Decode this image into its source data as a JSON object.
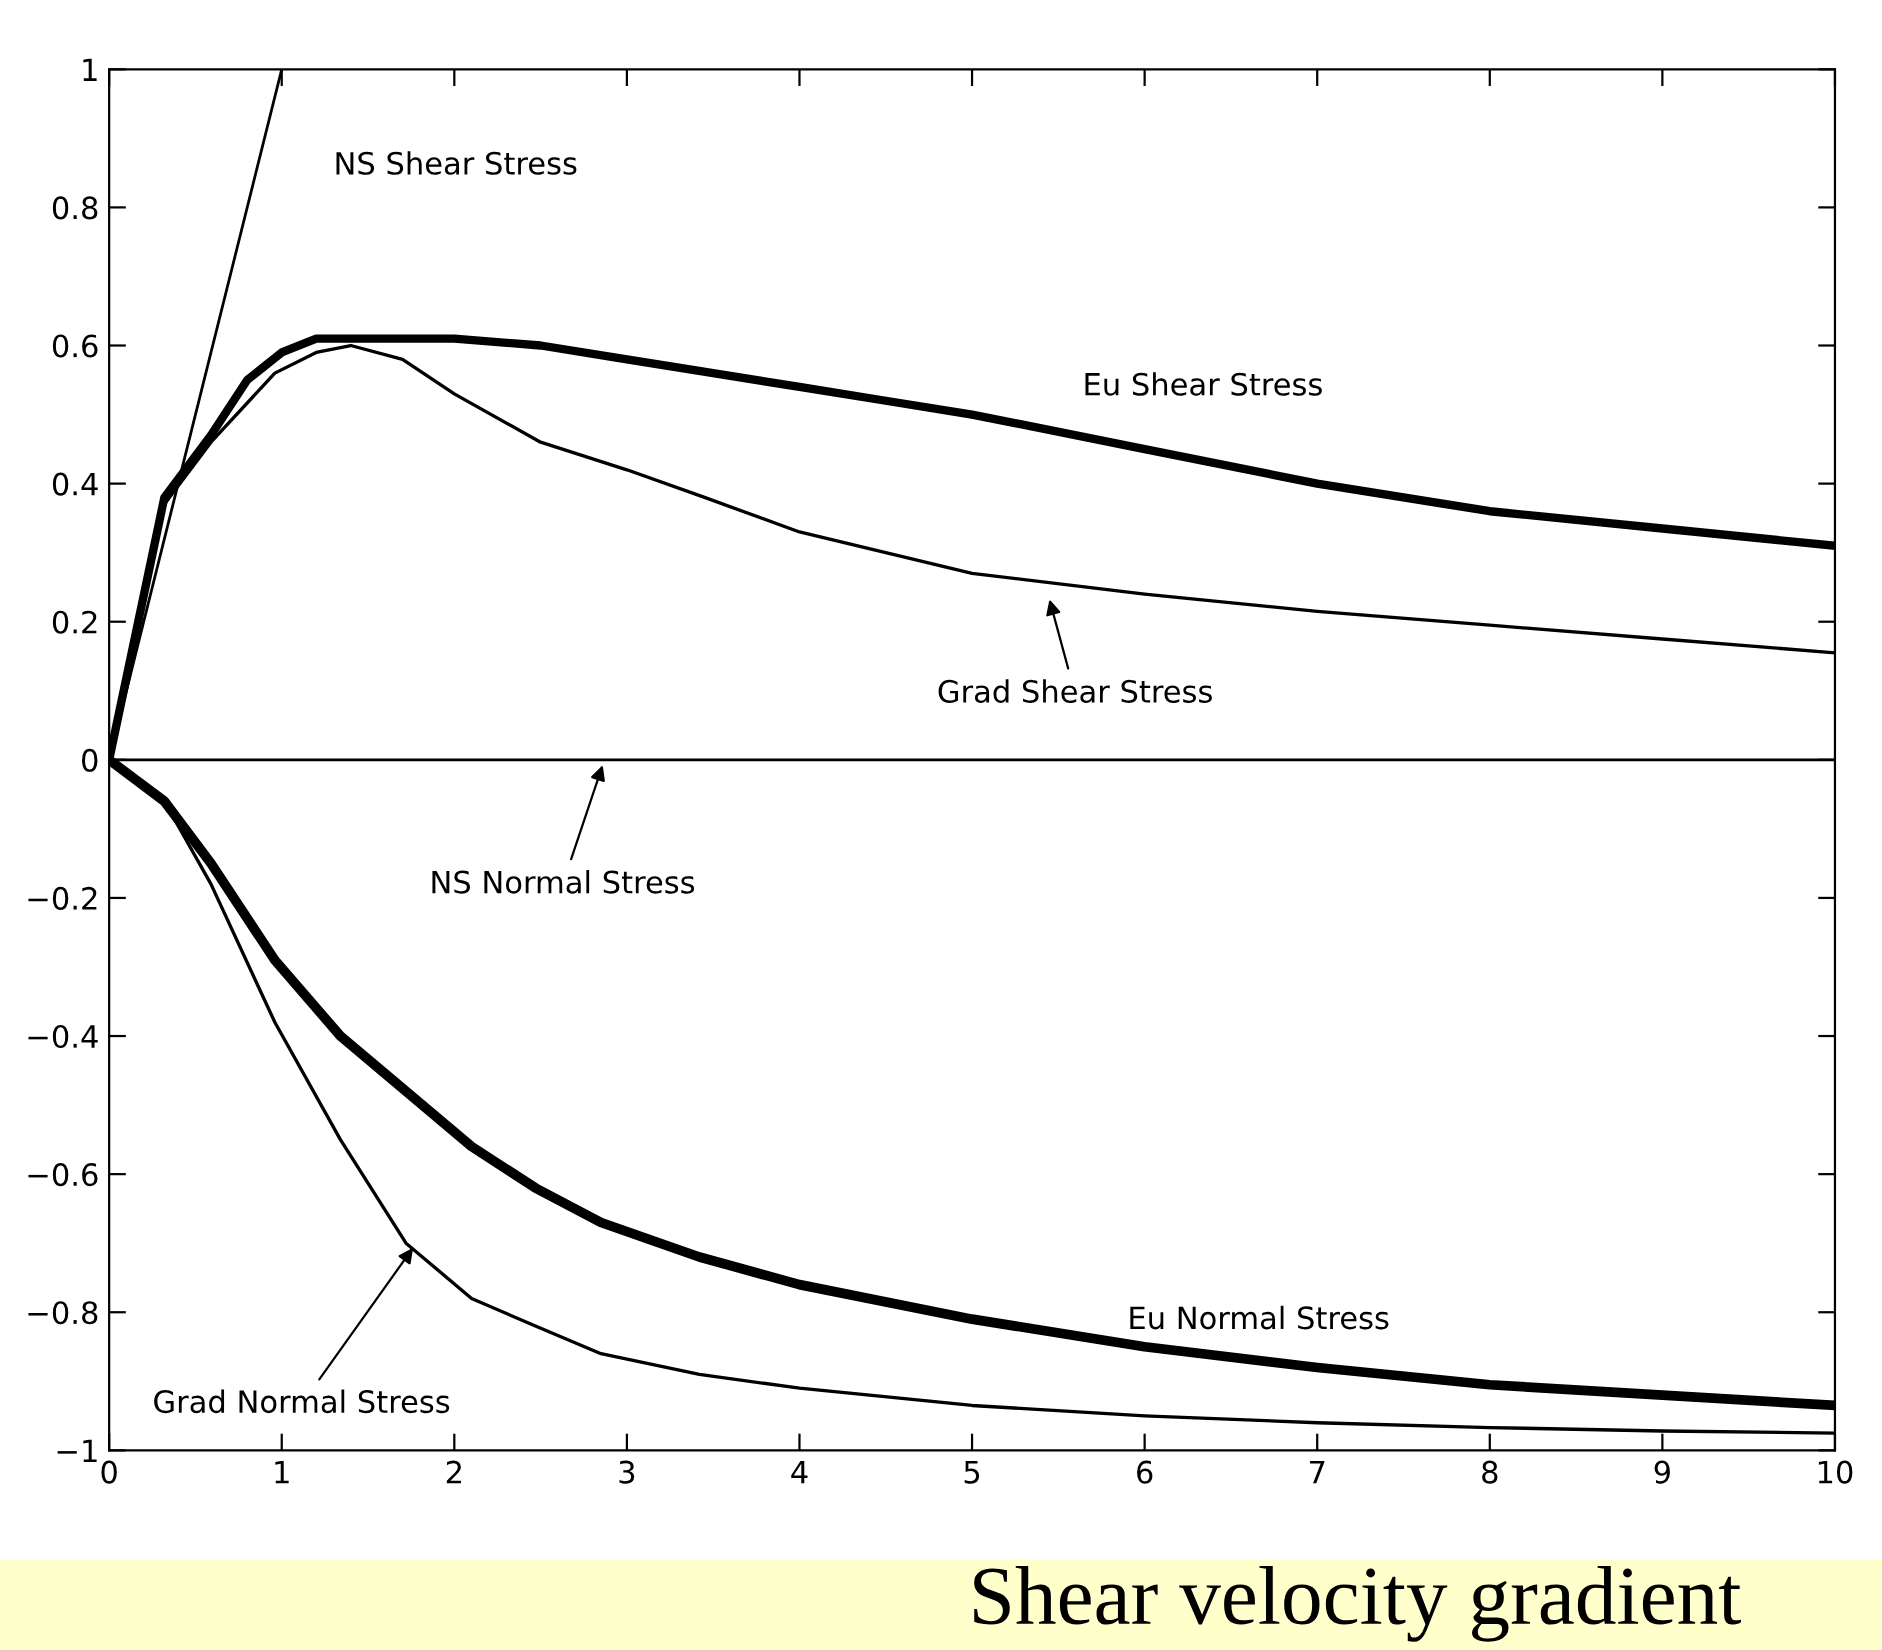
{
  "chart_data": {
    "type": "line",
    "xlabel": "Shear velocity gradient",
    "xlim": [
      0,
      10
    ],
    "ylim": [
      -1,
      1
    ],
    "xticks": [
      0,
      1,
      2,
      3,
      4,
      5,
      6,
      7,
      8,
      9,
      10
    ],
    "yticks": [
      -1,
      -0.8,
      -0.6,
      -0.4,
      -0.2,
      0,
      0.2,
      0.4,
      0.6,
      0.8,
      1
    ],
    "grid": false,
    "legend": false,
    "marker": "none",
    "line_style": "solid",
    "series": [
      {
        "color": "#000000",
        "x": [
          0,
          0.5,
          1.0
        ],
        "values": [
          0,
          0.5,
          1.0
        ]
      },
      {
        "color": "#000000",
        "x": [
          0,
          0.32,
          0.59,
          0.8,
          1.0,
          1.2,
          1.5,
          2,
          2.5,
          3,
          3.5,
          4,
          4.5,
          5,
          6,
          7,
          8,
          9,
          10
        ],
        "values": [
          0,
          0.38,
          0.47,
          0.55,
          0.59,
          0.61,
          0.61,
          0.61,
          0.6,
          0.58,
          0.56,
          0.54,
          0.52,
          0.5,
          0.45,
          0.4,
          0.36,
          0.335,
          0.31
        ]
      },
      {
        "color": "#000000",
        "x": [
          0,
          0.32,
          0.59,
          0.96,
          1.2,
          1.4,
          1.7,
          2.0,
          2.5,
          3.0,
          3.45,
          4,
          5,
          6,
          7,
          8,
          9,
          10
        ],
        "values": [
          0,
          0.37,
          0.46,
          0.56,
          0.59,
          0.6,
          0.58,
          0.53,
          0.46,
          0.42,
          0.38,
          0.33,
          0.27,
          0.24,
          0.215,
          0.195,
          0.175,
          0.155
        ]
      },
      {
        "color": "#000000",
        "x": [
          0,
          10
        ],
        "values": [
          0,
          0
        ]
      },
      {
        "color": "#000000",
        "x": [
          0,
          0.32,
          0.59,
          0.96,
          1.34,
          1.72,
          2.1,
          2.47,
          2.85,
          3.42,
          4,
          5,
          6,
          7,
          8,
          9,
          10
        ],
        "values": [
          0,
          -0.06,
          -0.15,
          -0.29,
          -0.4,
          -0.48,
          -0.56,
          -0.62,
          -0.67,
          -0.72,
          -0.76,
          -0.81,
          -0.85,
          -0.88,
          -0.905,
          -0.92,
          -0.935
        ]
      },
      {
        "color": "#000000",
        "x": [
          0,
          0.32,
          0.59,
          0.96,
          1.34,
          1.72,
          2.1,
          2.47,
          2.85,
          3.42,
          4,
          5,
          6,
          7,
          8,
          9,
          10
        ],
        "values": [
          0,
          -0.06,
          -0.18,
          -0.38,
          -0.55,
          -0.7,
          -0.78,
          -0.82,
          -0.86,
          -0.89,
          -0.91,
          -0.935,
          -0.95,
          -0.96,
          -0.967,
          -0.972,
          -0.975
        ]
      }
    ],
    "annotations": [
      "NS Shear Stress",
      "Eu Shear Stress",
      {
        "text": "Grad Shear Stress",
        "x": 5.44,
        "y": 0.24
      },
      {
        "text": "NS Normal Stress",
        "x": 2.87,
        "y": 0
      },
      "Eu Normal Stress",
      {
        "text": "Grad Normal Stress",
        "x": 1.78,
        "y": -0.7
      }
    ]
  }
}
